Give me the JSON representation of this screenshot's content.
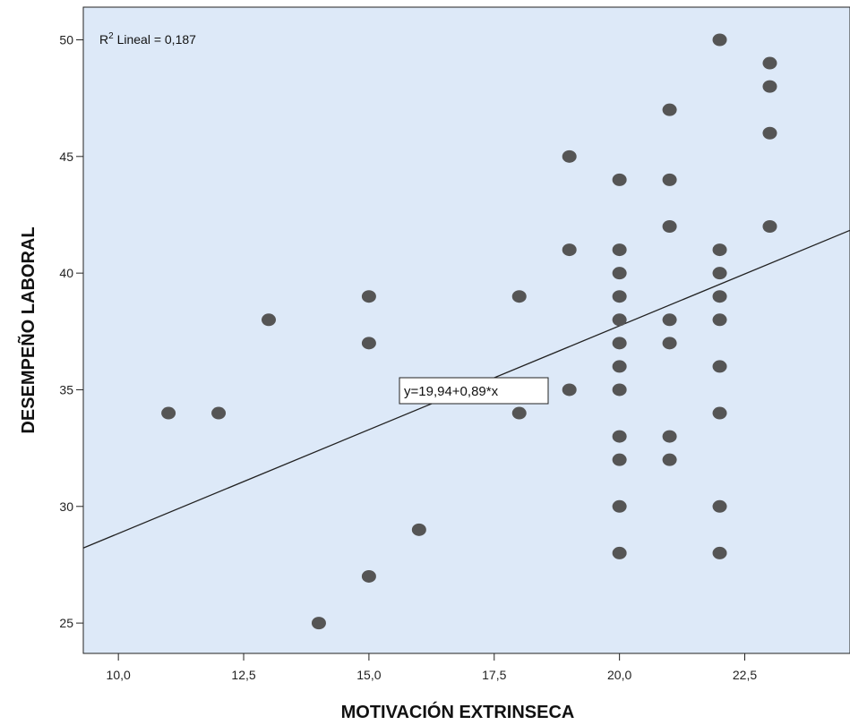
{
  "chart_data": {
    "type": "scatter",
    "xlabel": "MOTIVACIÓN EXTRINSECA",
    "ylabel": "DESEMPEÑO LABORAL",
    "xlim": [
      9.3,
      24.6
    ],
    "ylim": [
      23.7,
      51.4
    ],
    "x_ticks": [
      10.0,
      12.5,
      15.0,
      17.5,
      20.0,
      22.5
    ],
    "x_tick_labels": [
      "10,0",
      "12,5",
      "15,0",
      "17,5",
      "20,0",
      "22,5"
    ],
    "y_ticks": [
      25,
      30,
      35,
      40,
      45,
      50
    ],
    "y_tick_labels": [
      "25",
      "30",
      "35",
      "40",
      "45",
      "50"
    ],
    "r2_prefix": "R",
    "r2_sup": "2",
    "r2_text": " Lineal = 0,187",
    "equation": "y=19,94+0,89*x",
    "fit": {
      "intercept": 19.94,
      "slope": 0.89
    },
    "grid": false,
    "colors": {
      "plot_bg": "#dde9f8",
      "point": "#555555",
      "line": "#222222"
    },
    "points": [
      {
        "x": 11,
        "y": 34
      },
      {
        "x": 12,
        "y": 34
      },
      {
        "x": 13,
        "y": 38
      },
      {
        "x": 14,
        "y": 25
      },
      {
        "x": 15,
        "y": 39
      },
      {
        "x": 15,
        "y": 37
      },
      {
        "x": 15,
        "y": 27
      },
      {
        "x": 16,
        "y": 29
      },
      {
        "x": 18,
        "y": 39
      },
      {
        "x": 18,
        "y": 34
      },
      {
        "x": 19,
        "y": 45
      },
      {
        "x": 19,
        "y": 41
      },
      {
        "x": 19,
        "y": 35
      },
      {
        "x": 20,
        "y": 44
      },
      {
        "x": 20,
        "y": 41
      },
      {
        "x": 20,
        "y": 40
      },
      {
        "x": 20,
        "y": 39
      },
      {
        "x": 20,
        "y": 38
      },
      {
        "x": 20,
        "y": 37
      },
      {
        "x": 20,
        "y": 36
      },
      {
        "x": 20,
        "y": 35
      },
      {
        "x": 20,
        "y": 33
      },
      {
        "x": 20,
        "y": 32
      },
      {
        "x": 20,
        "y": 30
      },
      {
        "x": 20,
        "y": 28
      },
      {
        "x": 21,
        "y": 47
      },
      {
        "x": 21,
        "y": 44
      },
      {
        "x": 21,
        "y": 42
      },
      {
        "x": 21,
        "y": 38
      },
      {
        "x": 21,
        "y": 37
      },
      {
        "x": 21,
        "y": 33
      },
      {
        "x": 21,
        "y": 32
      },
      {
        "x": 22,
        "y": 50
      },
      {
        "x": 22,
        "y": 41
      },
      {
        "x": 22,
        "y": 40
      },
      {
        "x": 22,
        "y": 39
      },
      {
        "x": 22,
        "y": 38
      },
      {
        "x": 22,
        "y": 36
      },
      {
        "x": 22,
        "y": 34
      },
      {
        "x": 22,
        "y": 30
      },
      {
        "x": 22,
        "y": 28
      },
      {
        "x": 23,
        "y": 49
      },
      {
        "x": 23,
        "y": 48
      },
      {
        "x": 23,
        "y": 46
      },
      {
        "x": 23,
        "y": 42
      }
    ]
  }
}
